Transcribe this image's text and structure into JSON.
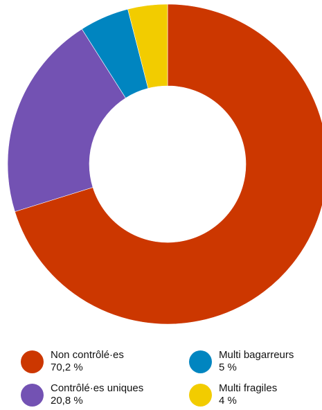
{
  "chart_data": {
    "type": "pie",
    "title": "",
    "categories": [
      "Non contrôlé·es",
      "Contrôlé·es uniques",
      "Multi bagarreurs",
      "Multi fragiles"
    ],
    "values": [
      70.2,
      20.8,
      5,
      4
    ],
    "value_labels": [
      "70,2 %",
      "20,8 %",
      "5 %",
      "4 %"
    ],
    "colors": [
      "#cc3700",
      "#7352b3",
      "#0085c0",
      "#f2cc00"
    ],
    "donut": true,
    "legend_position": "bottom"
  },
  "legend": {
    "items": [
      {
        "label": "Non contrôlé·es",
        "value": "70,2 %",
        "color": "#cc3700"
      },
      {
        "label": "Contrôlé·es uniques",
        "value": "20,8 %",
        "color": "#7352b3"
      },
      {
        "label": "Multi bagarreurs",
        "value": "5 %",
        "color": "#0085c0"
      },
      {
        "label": "Multi fragiles",
        "value": "4 %",
        "color": "#f2cc00"
      }
    ]
  }
}
